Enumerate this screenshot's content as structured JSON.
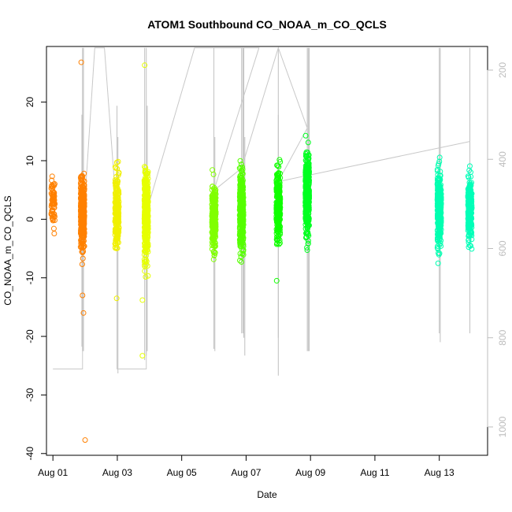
{
  "chart_data": {
    "type": "scatter",
    "title": "ATOM1 Southbound CO_NOAA_m_CO_QCLS",
    "xlabel": "Date",
    "ylabel": "CO_NOAA_m_CO_QCLS",
    "xlim": [
      -0.2,
      13.5
    ],
    "ylim": [
      -40.3,
      29.5
    ],
    "x_ticks": [
      0,
      2,
      4,
      6,
      8,
      10,
      12
    ],
    "x_tick_labels": [
      "Aug 01",
      "Aug 03",
      "Aug 05",
      "Aug 07",
      "Aug 09",
      "Aug 11",
      "Aug 13"
    ],
    "y_ticks": [
      -40,
      -30,
      -20,
      -10,
      0,
      10,
      20
    ],
    "y_tick_labels": [
      "-40",
      "-30",
      "-20",
      "-10",
      "0",
      "10",
      "20"
    ],
    "y2_ticks": [
      200,
      400,
      600,
      800,
      1000
    ],
    "y2_tick_labels": [
      "200",
      "400",
      "600",
      "800",
      "1000"
    ],
    "y2_note": "right axis pressure, inverted",
    "grid": false,
    "flights": [
      {
        "day": 0.0,
        "color": "#FF8000",
        "n": 70,
        "lo": -4.8,
        "hi": 10.5
      },
      {
        "day": 0.92,
        "color": "#FF8000",
        "n": 380,
        "lo": -10,
        "hi": 11.8
      },
      {
        "day": 1.99,
        "color": "#F0F000",
        "n": 230,
        "lo": -9.5,
        "hi": 12.5
      },
      {
        "day": 2.9,
        "color": "#E6FF00",
        "n": 380,
        "lo": -12.5,
        "hi": 14.5
      },
      {
        "day": 5.0,
        "color": "#80FF00",
        "n": 260,
        "lo": -9.5,
        "hi": 9.8
      },
      {
        "day": 5.86,
        "color": "#55FF00",
        "n": 380,
        "lo": -10.5,
        "hi": 13.8
      },
      {
        "day": 7.0,
        "color": "#10FF00",
        "n": 260,
        "lo": -8.5,
        "hi": 13.1
      },
      {
        "day": 7.9,
        "color": "#00FF20",
        "n": 380,
        "lo": -8.5,
        "hi": 17.0
      },
      {
        "day": 12.0,
        "color": "#00FFB0",
        "n": 340,
        "lo": -9,
        "hi": 12.5
      },
      {
        "day": 12.95,
        "color": "#00FFB8",
        "n": 260,
        "lo": -8.5,
        "hi": 12.0
      }
    ],
    "outliers": [
      {
        "x": 0.88,
        "y": 26.8,
        "color": "#FF8000"
      },
      {
        "x": 0.95,
        "y": -16.0,
        "color": "#FF8000"
      },
      {
        "x": 0.92,
        "y": -13.0,
        "color": "#FF8000"
      },
      {
        "x": 1.0,
        "y": -37.7,
        "color": "#FF8000"
      },
      {
        "x": 2.85,
        "y": 26.3,
        "color": "#E6FF00"
      },
      {
        "x": 2.78,
        "y": -23.3,
        "color": "#E6FF00"
      },
      {
        "x": 2.78,
        "y": -13.8,
        "color": "#E6FF00"
      },
      {
        "x": 1.98,
        "y": -13.5,
        "color": "#F0F000"
      },
      {
        "x": 6.95,
        "y": -10.5,
        "color": "#10FF00"
      }
    ]
  }
}
